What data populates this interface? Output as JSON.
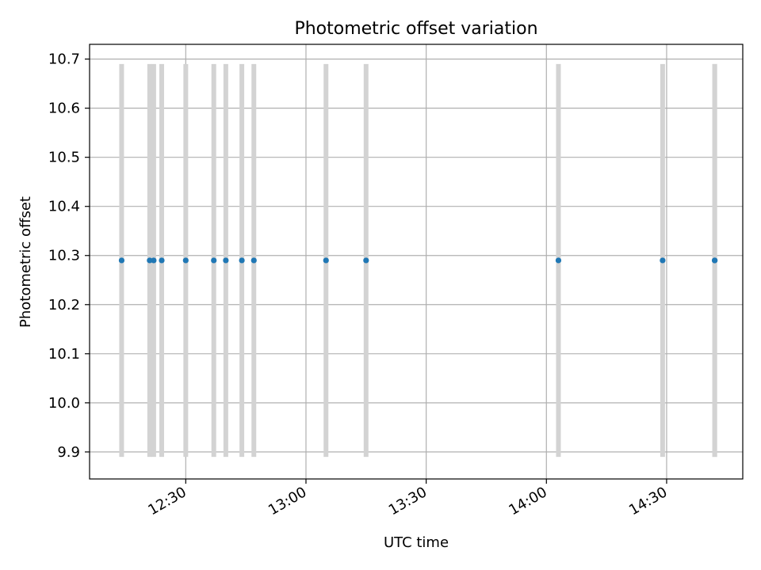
{
  "chart_data": {
    "type": "scatter",
    "title": "Photometric offset variation",
    "xlabel": "UTC time",
    "ylabel": "Photometric offset",
    "x_ticks": [
      "12:30",
      "13:00",
      "13:30",
      "14:00",
      "14:30"
    ],
    "y_ticks": [
      "9.9",
      "10.0",
      "10.1",
      "10.2",
      "10.3",
      "10.4",
      "10.5",
      "10.6",
      "10.7"
    ],
    "xlim": [
      "12:06",
      "14:49"
    ],
    "ylim": [
      9.845,
      10.73
    ],
    "grid": true,
    "series": [
      {
        "x": [
          "12:14",
          "12:21",
          "12:22",
          "12:24",
          "12:30",
          "12:37",
          "12:40",
          "12:44",
          "12:47",
          "13:05",
          "13:15",
          "14:03",
          "14:29",
          "14:42",
          "14:42"
        ],
        "y": [
          10.29,
          10.29,
          10.29,
          10.29,
          10.29,
          10.29,
          10.29,
          10.29,
          10.29,
          10.29,
          10.29,
          10.29,
          10.29,
          10.29,
          10.29
        ],
        "yerr": [
          0.4,
          0.4,
          0.4,
          0.4,
          0.4,
          0.4,
          0.4,
          0.4,
          0.4,
          0.4,
          0.4,
          0.4,
          0.4,
          0.4,
          0.4
        ]
      }
    ],
    "colors": {
      "points": "#1f77b4",
      "errorbars": "#d3d3d3",
      "grid": "#b0b0b0"
    }
  }
}
